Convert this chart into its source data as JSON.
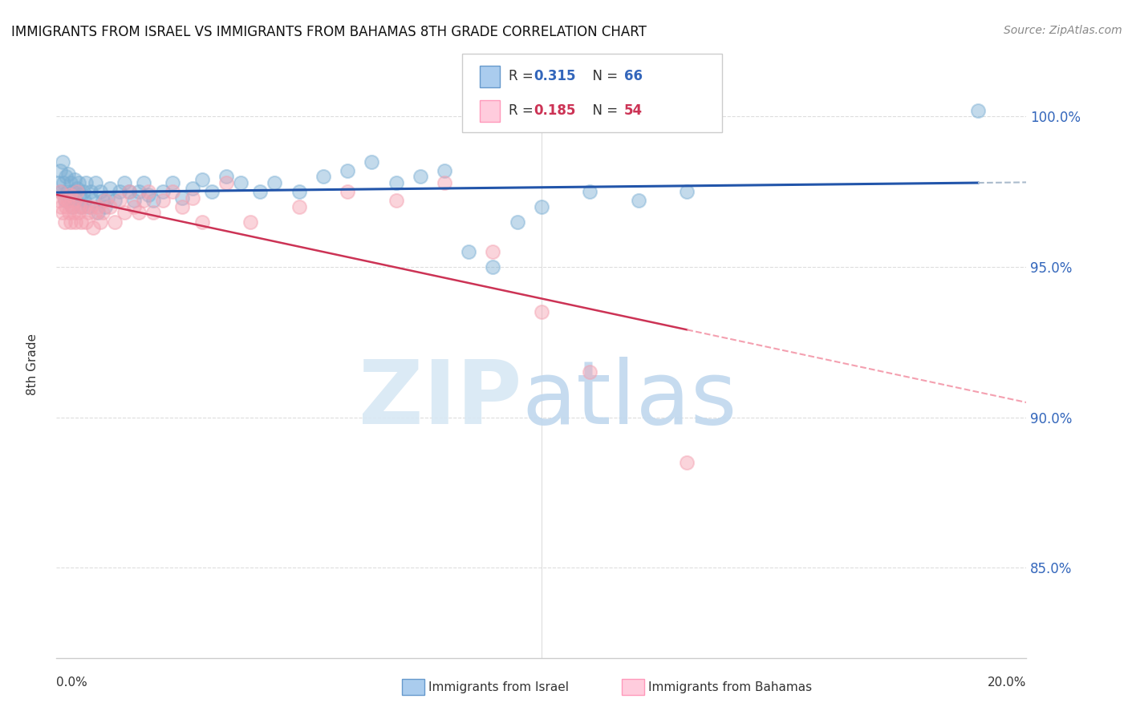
{
  "title": "IMMIGRANTS FROM ISRAEL VS IMMIGRANTS FROM BAHAMAS 8TH GRADE CORRELATION CHART",
  "source": "Source: ZipAtlas.com",
  "ylabel": "8th Grade",
  "right_yticks": [
    100.0,
    95.0,
    90.0,
    85.0
  ],
  "legend_blue_r": "0.315",
  "legend_blue_n": "66",
  "legend_pink_r": "0.185",
  "legend_pink_n": "54",
  "legend_blue_label": "Immigrants from Israel",
  "legend_pink_label": "Immigrants from Bahamas",
  "blue_color": "#7BAFD4",
  "pink_color": "#F4A0B0",
  "blue_line_color": "#2255AA",
  "pink_line_color": "#CC3355",
  "blue_dash_color": "#AABBCC",
  "pink_dash_color": "#F4A0B0",
  "xmin": 0.0,
  "xmax": 20.0,
  "ymin": 82.0,
  "ymax": 101.5,
  "blue_scatter_x": [
    0.05,
    0.08,
    0.1,
    0.12,
    0.15,
    0.18,
    0.2,
    0.22,
    0.25,
    0.28,
    0.3,
    0.32,
    0.35,
    0.38,
    0.4,
    0.42,
    0.45,
    0.48,
    0.5,
    0.55,
    0.58,
    0.6,
    0.65,
    0.7,
    0.75,
    0.8,
    0.85,
    0.9,
    0.95,
    1.0,
    1.05,
    1.1,
    1.2,
    1.3,
    1.4,
    1.5,
    1.6,
    1.7,
    1.8,
    1.9,
    2.0,
    2.2,
    2.4,
    2.6,
    2.8,
    3.0,
    3.2,
    3.5,
    3.8,
    4.2,
    4.5,
    5.0,
    5.5,
    6.0,
    6.5,
    7.0,
    7.5,
    8.0,
    8.5,
    9.0,
    9.5,
    10.0,
    11.0,
    12.0,
    13.0,
    19.0
  ],
  "blue_scatter_y": [
    97.8,
    98.2,
    97.5,
    98.5,
    97.8,
    97.2,
    98.0,
    97.5,
    98.1,
    97.3,
    97.8,
    97.0,
    97.5,
    97.9,
    97.2,
    97.6,
    97.8,
    97.4,
    97.0,
    97.5,
    97.2,
    97.8,
    97.0,
    97.5,
    97.2,
    97.8,
    96.8,
    97.5,
    97.2,
    97.0,
    97.3,
    97.6,
    97.2,
    97.5,
    97.8,
    97.5,
    97.2,
    97.5,
    97.8,
    97.4,
    97.2,
    97.5,
    97.8,
    97.3,
    97.6,
    97.9,
    97.5,
    98.0,
    97.8,
    97.5,
    97.8,
    97.5,
    98.0,
    98.2,
    98.5,
    97.8,
    98.0,
    98.2,
    95.5,
    95.0,
    96.5,
    97.0,
    97.5,
    97.2,
    97.5,
    100.2
  ],
  "pink_scatter_x": [
    0.04,
    0.07,
    0.1,
    0.13,
    0.16,
    0.18,
    0.2,
    0.23,
    0.26,
    0.28,
    0.3,
    0.33,
    0.36,
    0.38,
    0.4,
    0.43,
    0.46,
    0.48,
    0.5,
    0.55,
    0.6,
    0.65,
    0.7,
    0.75,
    0.8,
    0.85,
    0.9,
    0.95,
    1.0,
    1.1,
    1.2,
    1.3,
    1.4,
    1.5,
    1.6,
    1.7,
    1.8,
    1.9,
    2.0,
    2.2,
    2.4,
    2.6,
    2.8,
    3.0,
    3.5,
    4.0,
    5.0,
    6.0,
    7.0,
    8.0,
    9.0,
    10.0,
    11.0,
    13.0
  ],
  "pink_scatter_y": [
    97.2,
    97.5,
    97.0,
    96.8,
    97.3,
    96.5,
    97.0,
    97.2,
    96.8,
    97.4,
    96.5,
    97.0,
    96.8,
    97.2,
    96.5,
    97.5,
    96.8,
    97.0,
    96.5,
    97.0,
    96.5,
    96.8,
    97.0,
    96.3,
    96.8,
    97.0,
    96.5,
    96.8,
    97.2,
    97.0,
    96.5,
    97.2,
    96.8,
    97.5,
    97.0,
    96.8,
    97.2,
    97.5,
    96.8,
    97.2,
    97.5,
    97.0,
    97.3,
    96.5,
    97.8,
    96.5,
    97.0,
    97.5,
    97.2,
    97.8,
    95.5,
    93.5,
    91.5,
    88.5
  ],
  "blue_solid_end": 19.0,
  "blue_dash_end": 20.0,
  "pink_solid_end": 13.0,
  "pink_dash_end": 20.0
}
